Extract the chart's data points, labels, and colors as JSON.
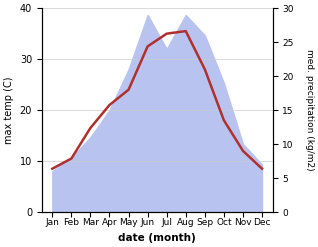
{
  "months": [
    "Jan",
    "Feb",
    "Mar",
    "Apr",
    "May",
    "Jun",
    "Jul",
    "Aug",
    "Sep",
    "Oct",
    "Nov",
    "Dec"
  ],
  "temperature": [
    8.5,
    10.5,
    16.5,
    21.0,
    24.0,
    32.5,
    35.0,
    35.5,
    28.0,
    18.0,
    12.0,
    8.5
  ],
  "precipitation": [
    6,
    8,
    11,
    15,
    21,
    29,
    24,
    29,
    26,
    19,
    10,
    7
  ],
  "temp_color": "#b03030",
  "precip_color_fill": "#b8c4ef",
  "ylabel_left": "max temp (C)",
  "ylabel_right": "med. precipitation (kg/m2)",
  "xlabel": "date (month)",
  "ylim_left": [
    0,
    40
  ],
  "ylim_right": [
    0,
    30
  ],
  "yticks_left": [
    0,
    10,
    20,
    30,
    40
  ],
  "yticks_right": [
    0,
    5,
    10,
    15,
    20,
    25,
    30
  ],
  "background_color": "#ffffff",
  "temp_linewidth": 1.8
}
